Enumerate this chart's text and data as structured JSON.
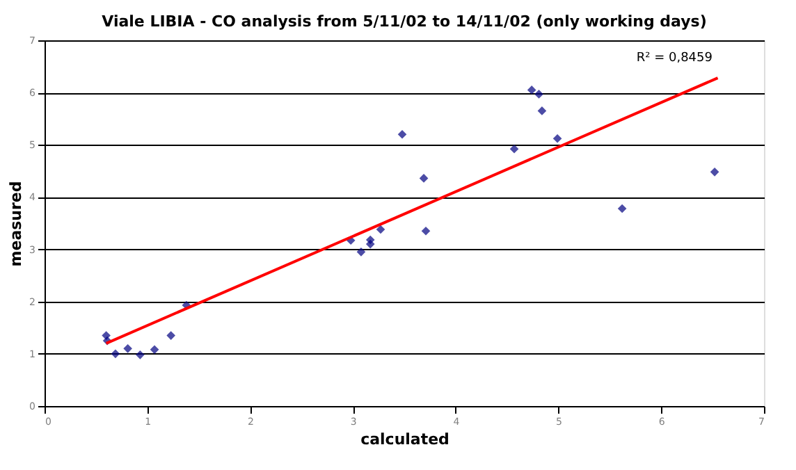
{
  "chart_data": {
    "type": "scatter",
    "title": "Viale LIBIA - CO analysis from 5/11/02 to 14/11/02 (only working days)",
    "xlabel": "calculated",
    "ylabel": "measured",
    "series": [
      {
        "color": "#000080",
        "marker": "diamond",
        "x": [
          0.6,
          0.61,
          0.69,
          0.81,
          0.93,
          1.07,
          1.23,
          1.38,
          2.98,
          3.08,
          3.17,
          3.17,
          3.27,
          3.48,
          3.69,
          3.71,
          4.57,
          4.74,
          4.81,
          4.84,
          4.99,
          5.62,
          6.52
        ],
        "values": [
          1.35,
          1.25,
          1.0,
          1.1,
          0.98,
          1.08,
          1.35,
          1.93,
          3.17,
          2.95,
          3.1,
          3.18,
          3.38,
          5.2,
          4.36,
          3.35,
          4.92,
          6.05,
          5.97,
          5.65,
          5.12,
          3.78,
          4.48
        ]
      },
      {
        "type": "line",
        "color": "#ff0000",
        "marker": "none",
        "x": [
          0.6,
          6.55
        ],
        "values": [
          1.2,
          6.28
        ]
      }
    ],
    "annotations": [
      "R² = 0,8459"
    ],
    "xlim": [
      0,
      7
    ],
    "ylim": [
      0,
      7
    ],
    "xticks": [
      0,
      1,
      2,
      3,
      4,
      5,
      6,
      7
    ],
    "yticks": [
      0,
      1,
      2,
      3,
      4,
      5,
      6,
      7
    ],
    "grid": "y"
  }
}
